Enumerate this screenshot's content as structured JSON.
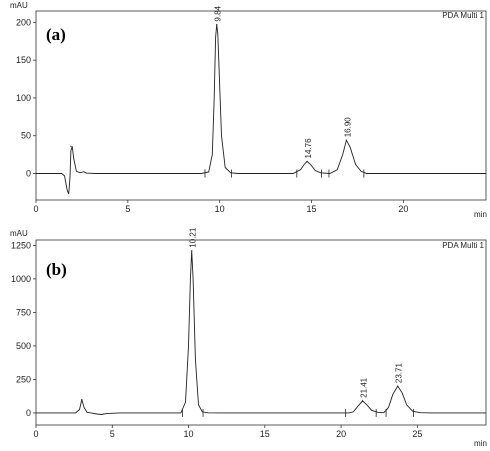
{
  "chart_data": [
    {
      "type": "line",
      "panel_label": "(a)",
      "detector": "PDA Multi 1",
      "ylabel": "mAU",
      "xlabel": "min",
      "xlim": [
        0,
        24.5
      ],
      "ylim": [
        -35,
        215
      ],
      "xticks": [
        0,
        5,
        10,
        15,
        20
      ],
      "yticks": [
        0,
        50,
        100,
        150,
        200
      ],
      "grid": false,
      "peaks": [
        {
          "x": 1.9,
          "y": 36,
          "label": ""
        },
        {
          "x": 9.84,
          "y": 197,
          "label": "9.84"
        },
        {
          "x": 14.76,
          "y": 16,
          "label": "14.76"
        },
        {
          "x": 16.9,
          "y": 44,
          "label": "16.90"
        }
      ],
      "trace": {
        "x": [
          0,
          1.4,
          1.55,
          1.7,
          1.78,
          1.85,
          1.9,
          1.97,
          2.05,
          2.2,
          2.4,
          2.6,
          2.75,
          2.9,
          3.2,
          4,
          5,
          6,
          7,
          8,
          9,
          9.4,
          9.6,
          9.7,
          9.78,
          9.84,
          9.9,
          9.98,
          10.1,
          10.3,
          10.6,
          11,
          12,
          13,
          14,
          14.4,
          14.6,
          14.76,
          14.95,
          15.2,
          15.5,
          16,
          16.4,
          16.7,
          16.9,
          17.1,
          17.4,
          17.7,
          18,
          19,
          20,
          22,
          24.5
        ],
        "y": [
          0,
          0,
          -3,
          -22,
          -27,
          -5,
          30,
          36,
          20,
          3,
          1,
          2.5,
          0.5,
          0.5,
          0,
          0,
          0,
          0,
          0,
          0,
          0,
          2,
          25,
          100,
          180,
          197,
          185,
          130,
          50,
          8,
          1,
          0,
          0,
          0,
          0,
          5,
          12,
          16,
          12,
          4,
          1,
          0,
          5,
          25,
          44,
          35,
          12,
          3,
          0,
          0,
          0,
          0,
          0
        ]
      },
      "markers": [
        9.2,
        10.65,
        14.2,
        15.55,
        15.95,
        17.85
      ]
    },
    {
      "type": "line",
      "panel_label": "(b)",
      "detector": "PDA Multi 1",
      "ylabel": "mAU",
      "xlabel": "min",
      "xlim": [
        0,
        29.5
      ],
      "ylim": [
        -90,
        1290
      ],
      "xticks": [
        0,
        5,
        10,
        15,
        20,
        25
      ],
      "yticks": [
        0,
        250,
        500,
        750,
        1000,
        1250
      ],
      "grid": false,
      "peaks": [
        {
          "x": 3.0,
          "y": 100,
          "label": ""
        },
        {
          "x": 10.21,
          "y": 1210,
          "label": "10.21"
        },
        {
          "x": 21.41,
          "y": 90,
          "label": "21.41"
        },
        {
          "x": 23.71,
          "y": 200,
          "label": "23.71"
        }
      ],
      "trace": {
        "x": [
          0,
          2.6,
          2.85,
          3.0,
          3.15,
          3.35,
          3.6,
          4.0,
          4.3,
          4.6,
          5.5,
          8,
          9.5,
          9.8,
          10.0,
          10.12,
          10.21,
          10.3,
          10.45,
          10.65,
          10.9,
          11.3,
          12,
          15,
          18,
          20.5,
          20.8,
          21.1,
          21.41,
          21.7,
          22.0,
          22.4,
          22.8,
          23.1,
          23.4,
          23.71,
          24.0,
          24.3,
          24.7,
          25.2,
          26,
          29.5
        ],
        "y": [
          0,
          0,
          25,
          100,
          40,
          5,
          0,
          -8,
          -12,
          -5,
          0,
          0,
          0,
          80,
          500,
          1000,
          1210,
          1000,
          400,
          60,
          8,
          1,
          0,
          0,
          0,
          0,
          8,
          50,
          90,
          60,
          20,
          5,
          2,
          40,
          140,
          200,
          150,
          60,
          12,
          2,
          0,
          0
        ]
      },
      "markers": [
        9.6,
        10.95,
        20.3,
        22.3,
        22.95,
        24.75
      ]
    }
  ]
}
